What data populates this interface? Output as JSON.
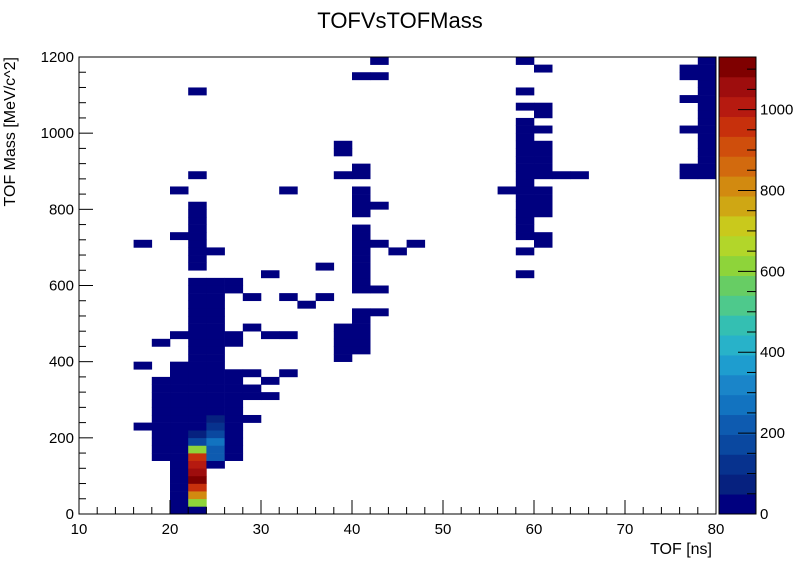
{
  "chart_data": {
    "type": "heatmap",
    "title": "TOFVsTOFMass",
    "xlabel": "TOF [ns]",
    "ylabel": "TOF Mass [MeV/c^2]",
    "xlim": [
      10,
      80
    ],
    "ylim": [
      0,
      1200
    ],
    "x_bin_width": 2,
    "y_bin_width": 20,
    "x_ticks": [
      10,
      20,
      30,
      40,
      50,
      60,
      70,
      80
    ],
    "y_ticks": [
      0,
      200,
      400,
      600,
      800,
      1000,
      1200
    ],
    "z_range": [
      0,
      1130
    ],
    "z_ticks": [
      0,
      200,
      400,
      600,
      800,
      1000
    ],
    "palette": [
      "#00007f",
      "#06217f",
      "#07328e",
      "#0a48a0",
      "#0e5bb0",
      "#1273c0",
      "#1a85c9",
      "#1e9dcf",
      "#28b2c9",
      "#34bfb2",
      "#4ec98c",
      "#67cd64",
      "#8ed43a",
      "#b2d62a",
      "#c9c91c",
      "#cfa714",
      "#d28a10",
      "#d26a0e",
      "#cf4e0c",
      "#c7300c",
      "#b61a10",
      "#9e0d0d",
      "#7f0000"
    ],
    "cells": [
      [
        21.0,
        10,
        0
      ],
      [
        21.0,
        30,
        1
      ],
      [
        21.0,
        50,
        2
      ],
      [
        21.0,
        70,
        3
      ],
      [
        21.0,
        90,
        3
      ],
      [
        21.0,
        110,
        1
      ],
      [
        21.0,
        130,
        1
      ],
      [
        21.0,
        150,
        1
      ],
      [
        21.0,
        170,
        0
      ],
      [
        21.0,
        190,
        0
      ],
      [
        21.0,
        210,
        0
      ],
      [
        21.0,
        230,
        0
      ],
      [
        21.0,
        250,
        0
      ],
      [
        21.0,
        270,
        0
      ],
      [
        21.0,
        290,
        0
      ],
      [
        21.0,
        310,
        0
      ],
      [
        21.0,
        330,
        0
      ],
      [
        21.0,
        350,
        0
      ],
      [
        21.0,
        370,
        0
      ],
      [
        21.0,
        390,
        0
      ],
      [
        21.0,
        470,
        0
      ],
      [
        21.0,
        730,
        0
      ],
      [
        21.0,
        850,
        0
      ],
      [
        23.0,
        10,
        7
      ],
      [
        23.0,
        30,
        600
      ],
      [
        23.0,
        50,
        800
      ],
      [
        23.0,
        70,
        950
      ],
      [
        23.0,
        90,
        1100
      ],
      [
        23.0,
        110,
        1050
      ],
      [
        23.0,
        130,
        1000
      ],
      [
        23.0,
        150,
        950
      ],
      [
        23.0,
        170,
        600
      ],
      [
        23.0,
        190,
        150
      ],
      [
        23.0,
        210,
        70
      ],
      [
        23.0,
        230,
        40
      ],
      [
        23.0,
        250,
        20
      ],
      [
        23.0,
        270,
        10
      ],
      [
        23.0,
        290,
        5
      ],
      [
        23.0,
        310,
        5
      ],
      [
        23.0,
        330,
        5
      ],
      [
        23.0,
        350,
        5
      ],
      [
        23.0,
        370,
        5
      ],
      [
        23.0,
        390,
        5
      ],
      [
        23.0,
        410,
        5
      ],
      [
        23.0,
        430,
        5
      ],
      [
        23.0,
        450,
        5
      ],
      [
        23.0,
        470,
        5
      ],
      [
        23.0,
        490,
        5
      ],
      [
        23.0,
        510,
        5
      ],
      [
        23.0,
        530,
        5
      ],
      [
        23.0,
        550,
        5
      ],
      [
        23.0,
        570,
        5
      ],
      [
        23.0,
        590,
        5
      ],
      [
        23.0,
        610,
        5
      ],
      [
        23.0,
        650,
        5
      ],
      [
        23.0,
        670,
        5
      ],
      [
        23.0,
        690,
        5
      ],
      [
        23.0,
        710,
        5
      ],
      [
        23.0,
        730,
        5
      ],
      [
        23.0,
        750,
        5
      ],
      [
        23.0,
        770,
        5
      ],
      [
        23.0,
        790,
        5
      ],
      [
        23.0,
        810,
        5
      ],
      [
        23.0,
        890,
        5
      ],
      [
        23.0,
        1110,
        5
      ],
      [
        25.0,
        130,
        10
      ],
      [
        25.0,
        150,
        200
      ],
      [
        25.0,
        170,
        230
      ],
      [
        25.0,
        190,
        250
      ],
      [
        25.0,
        210,
        150
      ],
      [
        25.0,
        230,
        120
      ],
      [
        25.0,
        250,
        50
      ],
      [
        25.0,
        270,
        20
      ],
      [
        25.0,
        290,
        10
      ],
      [
        25.0,
        310,
        5
      ],
      [
        25.0,
        330,
        5
      ],
      [
        25.0,
        350,
        5
      ],
      [
        25.0,
        370,
        5
      ],
      [
        25.0,
        390,
        5
      ],
      [
        25.0,
        410,
        5
      ],
      [
        25.0,
        430,
        5
      ],
      [
        25.0,
        450,
        5
      ],
      [
        25.0,
        470,
        5
      ],
      [
        25.0,
        490,
        5
      ],
      [
        25.0,
        510,
        5
      ],
      [
        25.0,
        530,
        5
      ],
      [
        25.0,
        550,
        5
      ],
      [
        25.0,
        570,
        5
      ],
      [
        25.0,
        590,
        5
      ],
      [
        25.0,
        610,
        5
      ],
      [
        25.0,
        690,
        5
      ],
      [
        19.0,
        150,
        0
      ],
      [
        19.0,
        170,
        0
      ],
      [
        19.0,
        190,
        0
      ],
      [
        19.0,
        210,
        0
      ],
      [
        19.0,
        230,
        0
      ],
      [
        19.0,
        250,
        0
      ],
      [
        19.0,
        270,
        0
      ],
      [
        19.0,
        290,
        0
      ],
      [
        19.0,
        310,
        0
      ],
      [
        19.0,
        330,
        0
      ],
      [
        19.0,
        350,
        0
      ],
      [
        19.0,
        450,
        0
      ],
      [
        17.0,
        230,
        0
      ],
      [
        17.0,
        390,
        0
      ],
      [
        17.0,
        710,
        0
      ],
      [
        27.0,
        150,
        0
      ],
      [
        27.0,
        170,
        0
      ],
      [
        27.0,
        190,
        0
      ],
      [
        27.0,
        210,
        0
      ],
      [
        27.0,
        230,
        0
      ],
      [
        27.0,
        250,
        0
      ],
      [
        27.0,
        270,
        0
      ],
      [
        27.0,
        290,
        0
      ],
      [
        27.0,
        310,
        0
      ],
      [
        27.0,
        330,
        0
      ],
      [
        27.0,
        350,
        0
      ],
      [
        27.0,
        370,
        0
      ],
      [
        27.0,
        450,
        0
      ],
      [
        27.0,
        470,
        0
      ],
      [
        27.0,
        590,
        0
      ],
      [
        27.0,
        610,
        0
      ],
      [
        29.0,
        250,
        0
      ],
      [
        29.0,
        310,
        0
      ],
      [
        29.0,
        330,
        0
      ],
      [
        29.0,
        370,
        0
      ],
      [
        29.0,
        490,
        0
      ],
      [
        29.0,
        570,
        0
      ],
      [
        31.0,
        310,
        0
      ],
      [
        31.0,
        350,
        0
      ],
      [
        31.0,
        470,
        0
      ],
      [
        31.0,
        630,
        0
      ],
      [
        33.0,
        370,
        0
      ],
      [
        33.0,
        470,
        0
      ],
      [
        33.0,
        570,
        0
      ],
      [
        33.0,
        850,
        0
      ],
      [
        35.0,
        550,
        0
      ],
      [
        37.0,
        570,
        0
      ],
      [
        37.0,
        650,
        0
      ],
      [
        39.0,
        410,
        0
      ],
      [
        39.0,
        430,
        0
      ],
      [
        39.0,
        450,
        0
      ],
      [
        39.0,
        470,
        0
      ],
      [
        39.0,
        490,
        0
      ],
      [
        39.0,
        890,
        0
      ],
      [
        39.0,
        950,
        0
      ],
      [
        39.0,
        970,
        0
      ],
      [
        41.0,
        430,
        0
      ],
      [
        41.0,
        450,
        0
      ],
      [
        41.0,
        470,
        0
      ],
      [
        41.0,
        490,
        0
      ],
      [
        41.0,
        510,
        0
      ],
      [
        41.0,
        530,
        0
      ],
      [
        41.0,
        590,
        0
      ],
      [
        41.0,
        610,
        0
      ],
      [
        41.0,
        630,
        0
      ],
      [
        41.0,
        650,
        0
      ],
      [
        41.0,
        670,
        0
      ],
      [
        41.0,
        690,
        0
      ],
      [
        41.0,
        710,
        0
      ],
      [
        41.0,
        730,
        0
      ],
      [
        41.0,
        750,
        0
      ],
      [
        41.0,
        790,
        0
      ],
      [
        41.0,
        810,
        0
      ],
      [
        41.0,
        830,
        0
      ],
      [
        41.0,
        850,
        0
      ],
      [
        41.0,
        890,
        0
      ],
      [
        41.0,
        910,
        0
      ],
      [
        41.0,
        1150,
        0
      ],
      [
        43.0,
        530,
        0
      ],
      [
        43.0,
        590,
        0
      ],
      [
        43.0,
        710,
        0
      ],
      [
        43.0,
        810,
        0
      ],
      [
        43.0,
        1150,
        0
      ],
      [
        43.0,
        1190,
        0
      ],
      [
        45.0,
        690,
        0
      ],
      [
        47.0,
        710,
        0
      ],
      [
        57.0,
        850,
        0
      ],
      [
        59.0,
        630,
        0
      ],
      [
        59.0,
        690,
        0
      ],
      [
        59.0,
        730,
        0
      ],
      [
        59.0,
        750,
        0
      ],
      [
        59.0,
        770,
        0
      ],
      [
        59.0,
        790,
        0
      ],
      [
        59.0,
        810,
        0
      ],
      [
        59.0,
        830,
        0
      ],
      [
        59.0,
        850,
        0
      ],
      [
        59.0,
        870,
        0
      ],
      [
        59.0,
        890,
        0
      ],
      [
        59.0,
        910,
        0
      ],
      [
        59.0,
        930,
        0
      ],
      [
        59.0,
        950,
        0
      ],
      [
        59.0,
        970,
        0
      ],
      [
        59.0,
        990,
        0
      ],
      [
        59.0,
        1010,
        0
      ],
      [
        59.0,
        1030,
        0
      ],
      [
        59.0,
        1070,
        0
      ],
      [
        59.0,
        1110,
        0
      ],
      [
        59.0,
        1190,
        0
      ],
      [
        61.0,
        710,
        0
      ],
      [
        61.0,
        730,
        0
      ],
      [
        61.0,
        790,
        0
      ],
      [
        61.0,
        810,
        0
      ],
      [
        61.0,
        830,
        0
      ],
      [
        61.0,
        850,
        0
      ],
      [
        61.0,
        890,
        0
      ],
      [
        61.0,
        910,
        0
      ],
      [
        61.0,
        930,
        0
      ],
      [
        61.0,
        950,
        0
      ],
      [
        61.0,
        970,
        0
      ],
      [
        61.0,
        1010,
        0
      ],
      [
        61.0,
        1050,
        0
      ],
      [
        61.0,
        1070,
        0
      ],
      [
        61.0,
        1170,
        0
      ],
      [
        63.0,
        890,
        0
      ],
      [
        65.0,
        890,
        0
      ],
      [
        77.0,
        890,
        0
      ],
      [
        77.0,
        910,
        0
      ],
      [
        77.0,
        1010,
        0
      ],
      [
        77.0,
        1090,
        0
      ],
      [
        77.0,
        1150,
        0
      ],
      [
        77.0,
        1170,
        0
      ],
      [
        79.0,
        890,
        0
      ],
      [
        79.0,
        910,
        0
      ],
      [
        79.0,
        930,
        0
      ],
      [
        79.0,
        950,
        0
      ],
      [
        79.0,
        970,
        0
      ],
      [
        79.0,
        990,
        0
      ],
      [
        79.0,
        1010,
        0
      ],
      [
        79.0,
        1030,
        0
      ],
      [
        79.0,
        1050,
        0
      ],
      [
        79.0,
        1070,
        0
      ],
      [
        79.0,
        1090,
        0
      ],
      [
        79.0,
        1110,
        0
      ],
      [
        79.0,
        1130,
        0
      ],
      [
        79.0,
        1150,
        0
      ],
      [
        79.0,
        1170,
        0
      ],
      [
        79.0,
        1190,
        0
      ]
    ]
  }
}
